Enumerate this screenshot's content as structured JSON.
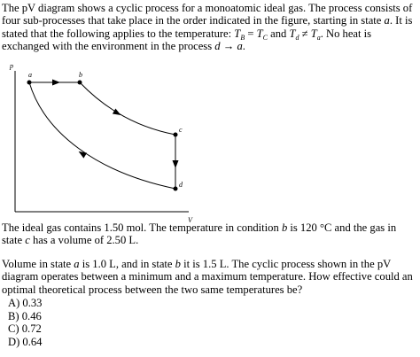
{
  "intro": [
    "The pV diagram shows a cyclic process for a monoatomic ideal gas. The process consists of four sub-processes that take place in the order indicated in the figure, starting in state ",
    "a",
    ". It is stated that the following applies to the temperature: ",
    "T",
    "B",
    " = ",
    "T",
    "C",
    " and ",
    "T",
    "d",
    " ≠ ",
    "T",
    "a",
    ". No heat is exchanged with the environment in the process ",
    "d",
    " → ",
    "a",
    "."
  ],
  "diagram": {
    "y_axis": "p",
    "x_axis": "V",
    "points": [
      "a",
      "b",
      "c",
      "d"
    ]
  },
  "paragraph2": [
    "The ideal gas contains 1.50 mol. The temperature in condition ",
    "b",
    " is 120 °C and the gas in state ",
    "c",
    " has a volume of 2.50 L."
  ],
  "paragraph3": [
    "Volume in state ",
    "a",
    " is 1.0 L, and in state ",
    "b",
    " it is 1.5 L. The cyclic process shown in the pV diagram operates between a minimum and a maximum temperature. How effective could an optimal theoretical process between the two same temperatures be?"
  ],
  "options": [
    "A) 0.33",
    "B) 0.46",
    "C) 0.72",
    "D) 0.64"
  ]
}
